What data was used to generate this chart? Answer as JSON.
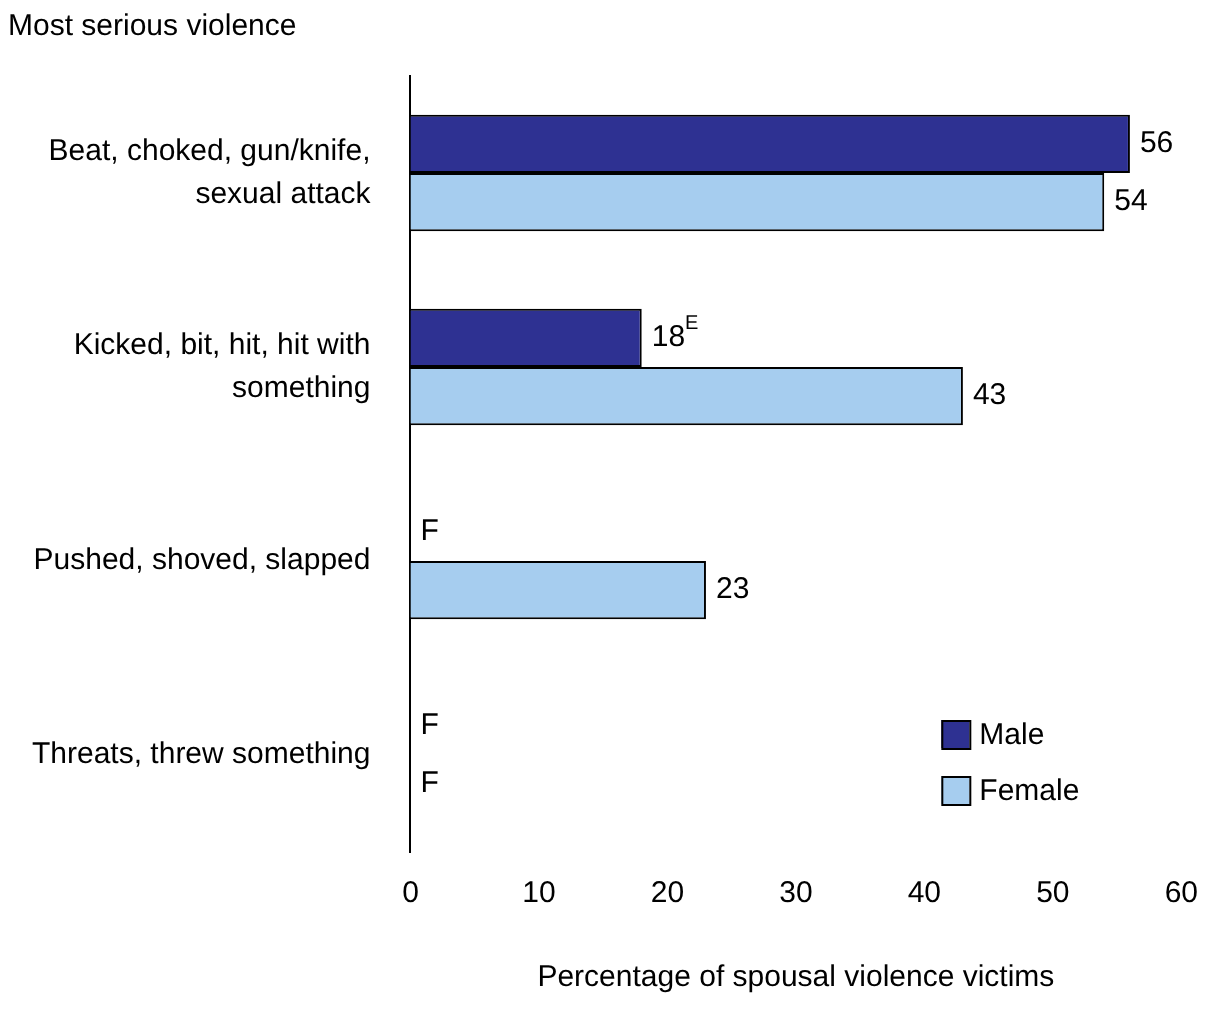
{
  "chart_data": {
    "type": "bar",
    "orientation": "horizontal",
    "ylabel": "Most serious violence",
    "xlabel": "Percentage of spousal violence victims",
    "categories": [
      "Beat, choked, gun/knife, sexual attack",
      "Kicked, bit, hit, hit with something",
      "Pushed, shoved, slapped",
      "Threats, threw something"
    ],
    "series": [
      {
        "name": "Male",
        "color": "#2e3192",
        "values": [
          56,
          18,
          null,
          null
        ],
        "value_labels": [
          "56",
          "18$^{E}$",
          "F",
          "F"
        ]
      },
      {
        "name": "Female",
        "color": "#a6cdef",
        "values": [
          54,
          43,
          23,
          null
        ],
        "value_labels": [
          "54",
          "43",
          "23",
          "F"
        ]
      }
    ],
    "xlim": [
      0,
      60
    ],
    "xticks": [
      0,
      10,
      20,
      30,
      40,
      50,
      60
    ],
    "grid": false,
    "legend": "bottom right"
  }
}
